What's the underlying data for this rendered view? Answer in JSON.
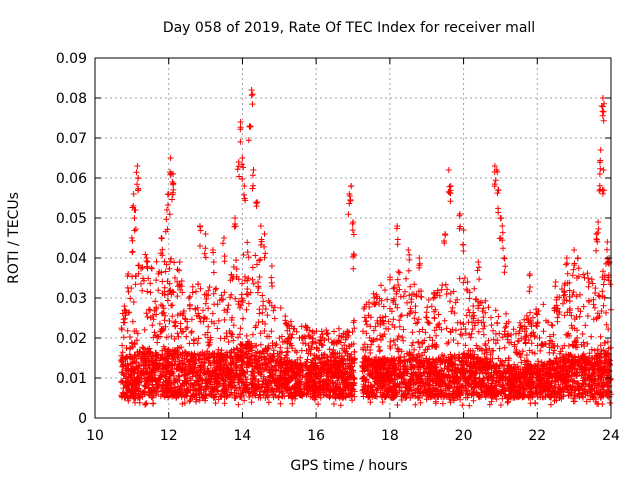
{
  "chart_data": {
    "type": "scatter",
    "title": "Day 058 of 2019, Rate Of TEC Index for receiver mall",
    "xlabel": "GPS time / hours",
    "ylabel": "ROTI / TECUs",
    "xlim": [
      10,
      24
    ],
    "ylim": [
      0,
      0.09
    ],
    "x_ticks": [
      10,
      12,
      14,
      16,
      18,
      20,
      22,
      24
    ],
    "y_ticks": [
      0,
      0.01,
      0.02,
      0.03,
      0.04,
      0.05,
      0.06,
      0.07,
      0.08,
      0.09
    ],
    "x_tick_labels": [
      "10",
      "12",
      "14",
      "16",
      "18",
      "20",
      "22",
      "24"
    ],
    "y_tick_labels": [
      "0",
      "0.01",
      "0.02",
      "0.03",
      "0.04",
      "0.05",
      "0.06",
      "0.07",
      "0.08",
      "0.09"
    ],
    "grid": true,
    "marker": "+",
    "color": "#ff0000",
    "data_segments": [
      {
        "start": 10.7,
        "end": 17.05
      },
      {
        "start": 17.25,
        "end": 24.0
      }
    ],
    "envelope": [
      [
        10.7,
        0.012,
        0.025
      ],
      [
        11.0,
        0.013,
        0.035
      ],
      [
        11.2,
        0.014,
        0.045
      ],
      [
        11.5,
        0.014,
        0.04
      ],
      [
        12.0,
        0.014,
        0.042
      ],
      [
        12.5,
        0.013,
        0.032
      ],
      [
        13.0,
        0.013,
        0.035
      ],
      [
        13.5,
        0.013,
        0.032
      ],
      [
        14.0,
        0.015,
        0.045
      ],
      [
        14.3,
        0.015,
        0.045
      ],
      [
        14.7,
        0.014,
        0.036
      ],
      [
        15.0,
        0.012,
        0.028
      ],
      [
        15.5,
        0.011,
        0.024
      ],
      [
        16.0,
        0.011,
        0.022
      ],
      [
        16.5,
        0.012,
        0.022
      ],
      [
        17.0,
        0.012,
        0.024
      ],
      [
        17.3,
        0.012,
        0.028
      ],
      [
        17.8,
        0.012,
        0.034
      ],
      [
        18.2,
        0.012,
        0.038
      ],
      [
        18.5,
        0.013,
        0.036
      ],
      [
        19.0,
        0.012,
        0.03
      ],
      [
        19.5,
        0.012,
        0.034
      ],
      [
        20.0,
        0.013,
        0.036
      ],
      [
        20.5,
        0.012,
        0.03
      ],
      [
        21.0,
        0.011,
        0.028
      ],
      [
        21.5,
        0.01,
        0.025
      ],
      [
        22.0,
        0.011,
        0.028
      ],
      [
        22.5,
        0.012,
        0.03
      ],
      [
        23.0,
        0.013,
        0.038
      ],
      [
        23.5,
        0.013,
        0.036
      ],
      [
        24.0,
        0.013,
        0.04
      ]
    ],
    "spikes": [
      {
        "x": 10.9,
        "y": 0.036
      },
      {
        "x": 11.0,
        "y": 0.045
      },
      {
        "x": 11.05,
        "y": 0.056
      },
      {
        "x": 11.1,
        "y": 0.052
      },
      {
        "x": 11.15,
        "y": 0.063
      },
      {
        "x": 11.17,
        "y": 0.06
      },
      {
        "x": 11.4,
        "y": 0.04
      },
      {
        "x": 11.8,
        "y": 0.045
      },
      {
        "x": 11.95,
        "y": 0.052
      },
      {
        "x": 12.0,
        "y": 0.056
      },
      {
        "x": 12.05,
        "y": 0.065
      },
      {
        "x": 12.1,
        "y": 0.059
      },
      {
        "x": 12.12,
        "y": 0.061
      },
      {
        "x": 12.3,
        "y": 0.039
      },
      {
        "x": 12.85,
        "y": 0.048
      },
      {
        "x": 13.0,
        "y": 0.046
      },
      {
        "x": 13.2,
        "y": 0.042
      },
      {
        "x": 13.5,
        "y": 0.045
      },
      {
        "x": 13.8,
        "y": 0.05
      },
      {
        "x": 13.9,
        "y": 0.064
      },
      {
        "x": 13.95,
        "y": 0.074
      },
      {
        "x": 14.0,
        "y": 0.065
      },
      {
        "x": 14.05,
        "y": 0.058
      },
      {
        "x": 14.2,
        "y": 0.073
      },
      {
        "x": 14.25,
        "y": 0.082
      },
      {
        "x": 14.3,
        "y": 0.062
      },
      {
        "x": 14.4,
        "y": 0.054
      },
      {
        "x": 14.5,
        "y": 0.048
      },
      {
        "x": 14.6,
        "y": 0.046
      },
      {
        "x": 14.8,
        "y": 0.038
      },
      {
        "x": 16.9,
        "y": 0.056
      },
      {
        "x": 16.95,
        "y": 0.058
      },
      {
        "x": 17.0,
        "y": 0.049
      },
      {
        "x": 17.02,
        "y": 0.041
      },
      {
        "x": 18.2,
        "y": 0.048
      },
      {
        "x": 18.5,
        "y": 0.042
      },
      {
        "x": 18.8,
        "y": 0.04
      },
      {
        "x": 19.6,
        "y": 0.062
      },
      {
        "x": 19.65,
        "y": 0.058
      },
      {
        "x": 19.5,
        "y": 0.046
      },
      {
        "x": 19.9,
        "y": 0.051
      },
      {
        "x": 20.0,
        "y": 0.047
      },
      {
        "x": 20.4,
        "y": 0.039
      },
      {
        "x": 20.85,
        "y": 0.063
      },
      {
        "x": 20.9,
        "y": 0.062
      },
      {
        "x": 20.95,
        "y": 0.057
      },
      {
        "x": 21.0,
        "y": 0.05
      },
      {
        "x": 21.05,
        "y": 0.048
      },
      {
        "x": 21.1,
        "y": 0.04
      },
      {
        "x": 21.8,
        "y": 0.036
      },
      {
        "x": 22.5,
        "y": 0.034
      },
      {
        "x": 22.8,
        "y": 0.04
      },
      {
        "x": 23.0,
        "y": 0.042
      },
      {
        "x": 23.1,
        "y": 0.04
      },
      {
        "x": 23.6,
        "y": 0.046
      },
      {
        "x": 23.65,
        "y": 0.049
      },
      {
        "x": 23.7,
        "y": 0.061
      },
      {
        "x": 23.72,
        "y": 0.067
      },
      {
        "x": 23.75,
        "y": 0.078
      },
      {
        "x": 23.78,
        "y": 0.08
      },
      {
        "x": 23.8,
        "y": 0.062
      },
      {
        "x": 23.9,
        "y": 0.044
      },
      {
        "x": 23.95,
        "y": 0.04
      }
    ]
  }
}
